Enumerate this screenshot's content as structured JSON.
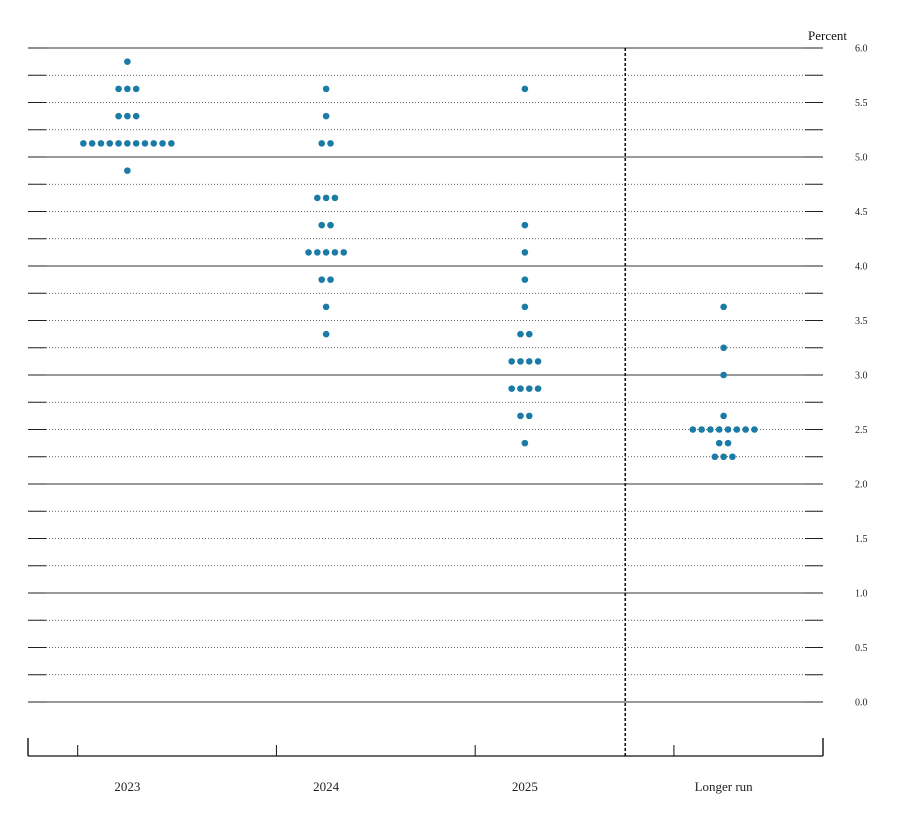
{
  "chart_data": {
    "type": "scatter",
    "title": "",
    "ylabel": "Percent",
    "xlabel": "",
    "ylim": [
      0,
      6
    ],
    "ytick_step": 0.25,
    "ytick_labels": [
      "0.0",
      "0.5",
      "1.0",
      "1.5",
      "2.0",
      "2.5",
      "3.0",
      "3.5",
      "4.0",
      "4.5",
      "5.0",
      "5.5",
      "6.0"
    ],
    "categories": [
      "2023",
      "2024",
      "2025",
      "Longer run"
    ],
    "separator_after": "2025",
    "dot_color": "#1a7ba6",
    "series": [
      {
        "name": "2023",
        "levels": [
          {
            "value": 5.875,
            "count": 1
          },
          {
            "value": 5.625,
            "count": 3
          },
          {
            "value": 5.375,
            "count": 3
          },
          {
            "value": 5.125,
            "count": 11
          },
          {
            "value": 4.875,
            "count": 1
          }
        ]
      },
      {
        "name": "2024",
        "levels": [
          {
            "value": 5.625,
            "count": 1
          },
          {
            "value": 5.375,
            "count": 1
          },
          {
            "value": 5.125,
            "count": 2
          },
          {
            "value": 4.625,
            "count": 3
          },
          {
            "value": 4.375,
            "count": 2
          },
          {
            "value": 4.125,
            "count": 5
          },
          {
            "value": 3.875,
            "count": 2
          },
          {
            "value": 3.625,
            "count": 1
          },
          {
            "value": 3.375,
            "count": 1
          }
        ]
      },
      {
        "name": "2025",
        "levels": [
          {
            "value": 5.625,
            "count": 1
          },
          {
            "value": 4.375,
            "count": 1
          },
          {
            "value": 4.125,
            "count": 1
          },
          {
            "value": 3.875,
            "count": 1
          },
          {
            "value": 3.625,
            "count": 1
          },
          {
            "value": 3.375,
            "count": 2
          },
          {
            "value": 3.125,
            "count": 4
          },
          {
            "value": 2.875,
            "count": 4
          },
          {
            "value": 2.625,
            "count": 2
          },
          {
            "value": 2.375,
            "count": 1
          }
        ]
      },
      {
        "name": "Longer run",
        "levels": [
          {
            "value": 3.625,
            "count": 1
          },
          {
            "value": 3.25,
            "count": 1
          },
          {
            "value": 3.0,
            "count": 1
          },
          {
            "value": 2.625,
            "count": 1
          },
          {
            "value": 2.5,
            "count": 8
          },
          {
            "value": 2.375,
            "count": 2
          },
          {
            "value": 2.25,
            "count": 3
          }
        ]
      }
    ]
  }
}
